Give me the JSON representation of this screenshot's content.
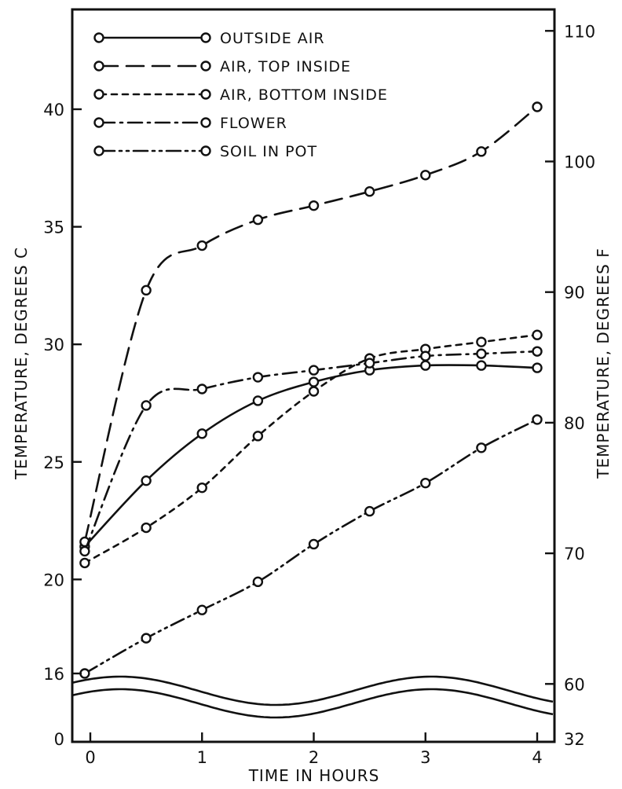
{
  "chart_data": {
    "type": "line",
    "title": "",
    "xlabel": "TIME IN HOURS",
    "ylabel": "TEMPERATURE, DEGREES C",
    "ylabel_right": "TEMPERATURE, DEGREES F",
    "xlim": [
      -0.15,
      4.15
    ],
    "ylim": [
      16,
      44.5
    ],
    "axis_break": true,
    "y_below_break_label": "0",
    "y_right_below_break_label": "32",
    "x_ticks": [
      "0",
      "1",
      "2",
      "3",
      "4"
    ],
    "y_ticks_left": [
      "16",
      "20",
      "25",
      "30",
      "35",
      "40"
    ],
    "y_ticks_right": [
      "60",
      "70",
      "80",
      "90",
      "100",
      "110"
    ],
    "grid": false,
    "legend_position": "top-left",
    "series": [
      {
        "name": "OUTSIDE AIR",
        "dash": "solid",
        "x": [
          -0.05,
          0.5,
          1.0,
          1.5,
          2.0,
          2.5,
          3.0,
          3.5,
          4.0
        ],
        "y": [
          21.4,
          24.2,
          26.2,
          27.6,
          28.4,
          28.9,
          29.1,
          29.1,
          29.0
        ]
      },
      {
        "name": "AIR, TOP INSIDE",
        "dash": "long-dash",
        "x": [
          -0.05,
          0.5,
          1.0,
          1.5,
          2.0,
          2.5,
          3.0,
          3.5,
          4.0
        ],
        "y": [
          21.6,
          32.3,
          34.2,
          35.3,
          35.9,
          36.5,
          37.2,
          38.2,
          40.1
        ]
      },
      {
        "name": "AIR, BOTTOM INSIDE",
        "dash": "short-dash",
        "x": [
          -0.05,
          0.5,
          1.0,
          1.5,
          2.0,
          2.5,
          3.0,
          3.5,
          4.0
        ],
        "y": [
          20.7,
          22.2,
          23.9,
          26.1,
          28.0,
          29.4,
          29.8,
          30.1,
          30.4
        ]
      },
      {
        "name": "FLOWER",
        "dash": "dash-dot",
        "x": [
          -0.05,
          0.5,
          1.0,
          1.5,
          2.0,
          2.5,
          3.0,
          3.5,
          4.0
        ],
        "y": [
          21.2,
          27.4,
          28.1,
          28.6,
          28.9,
          29.2,
          29.5,
          29.6,
          29.7
        ]
      },
      {
        "name": "SOIL IN POT",
        "dash": "dash-dot-dot",
        "x": [
          -0.05,
          0.5,
          1.0,
          1.5,
          2.0,
          2.5,
          3.0,
          3.5,
          4.0
        ],
        "y": [
          16.0,
          17.5,
          18.7,
          19.9,
          21.5,
          22.9,
          24.1,
          25.6,
          26.8
        ]
      }
    ]
  }
}
